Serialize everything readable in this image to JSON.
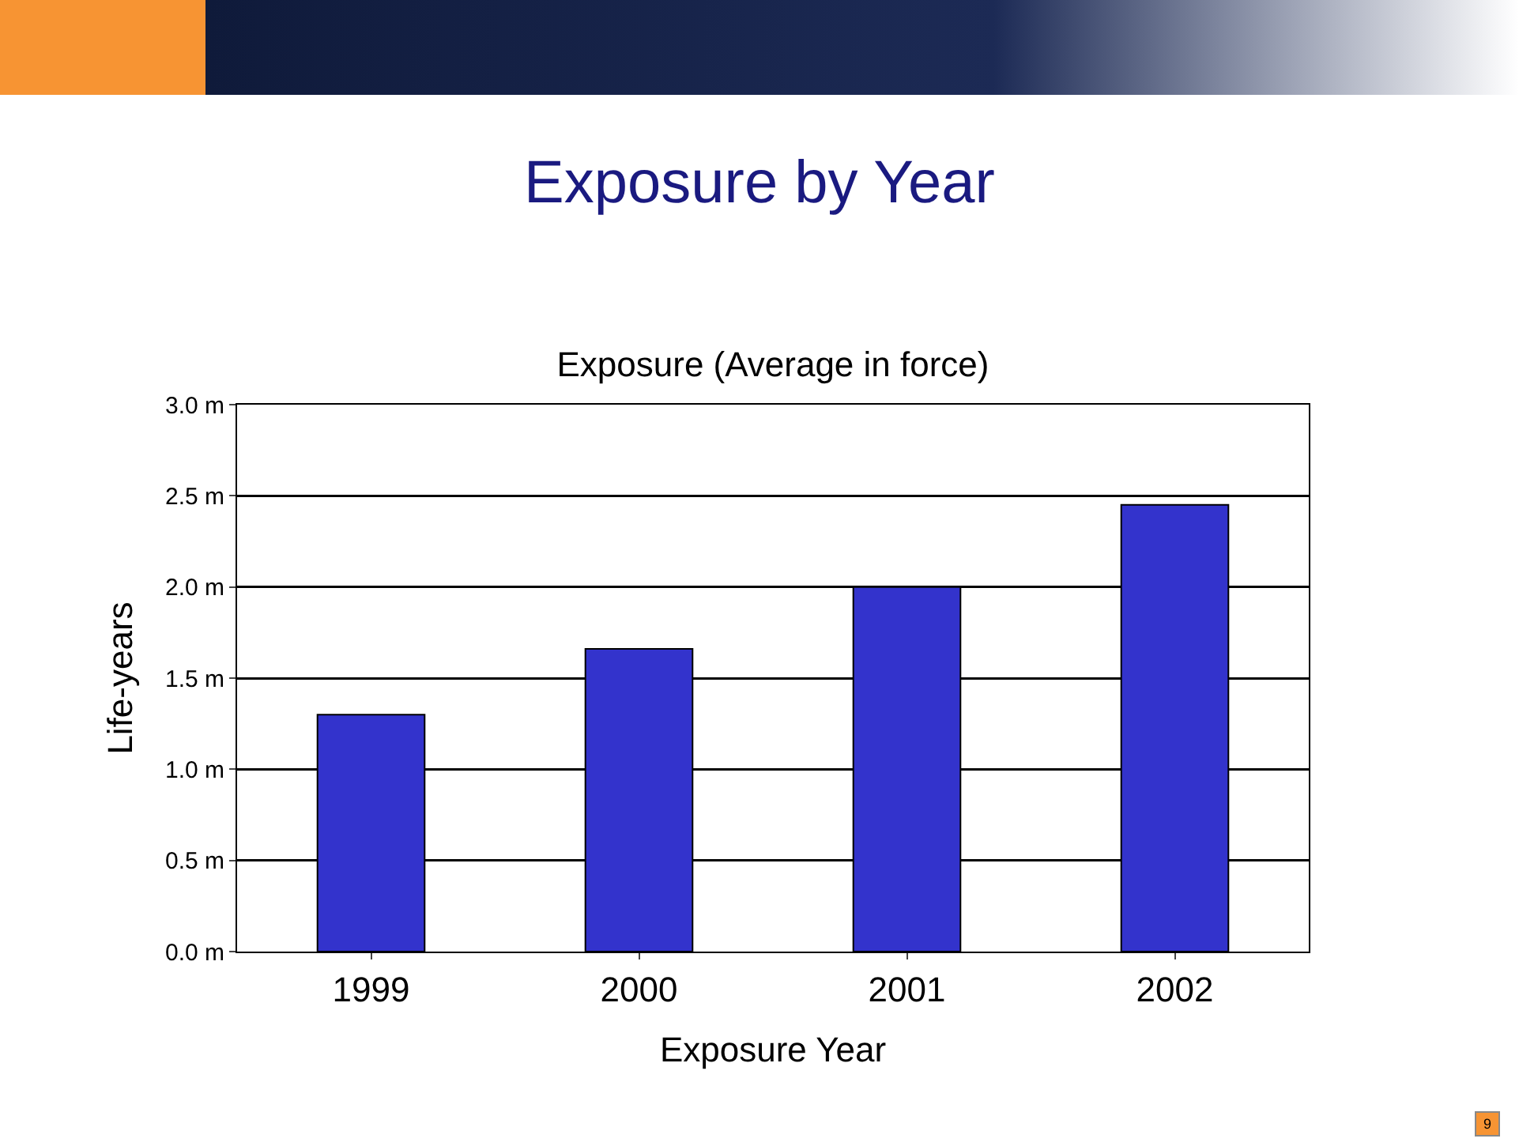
{
  "chart_data": {
    "type": "bar",
    "title": "Exposure by Year",
    "subtitle": "Exposure (Average in force)",
    "xlabel": "Exposure Year",
    "ylabel": "Life-years",
    "categories": [
      "1999",
      "2000",
      "2001",
      "2002"
    ],
    "values": [
      1.3,
      1.66,
      2.0,
      2.45
    ],
    "color": "#3333cc",
    "ylim": [
      0,
      3
    ],
    "yticks": [
      {
        "value": 0,
        "label": "0.0 m"
      },
      {
        "value": 0.5,
        "label": "0.5 m"
      },
      {
        "value": 1,
        "label": "1.0 m"
      },
      {
        "value": 1.5,
        "label": "1.5 m"
      },
      {
        "value": 2,
        "label": "2.0 m"
      },
      {
        "value": 2.5,
        "label": "2.5 m"
      },
      {
        "value": 3,
        "label": "3.0 m"
      }
    ],
    "grid": "y",
    "legend": false,
    "annotations": [
      "9"
    ]
  }
}
